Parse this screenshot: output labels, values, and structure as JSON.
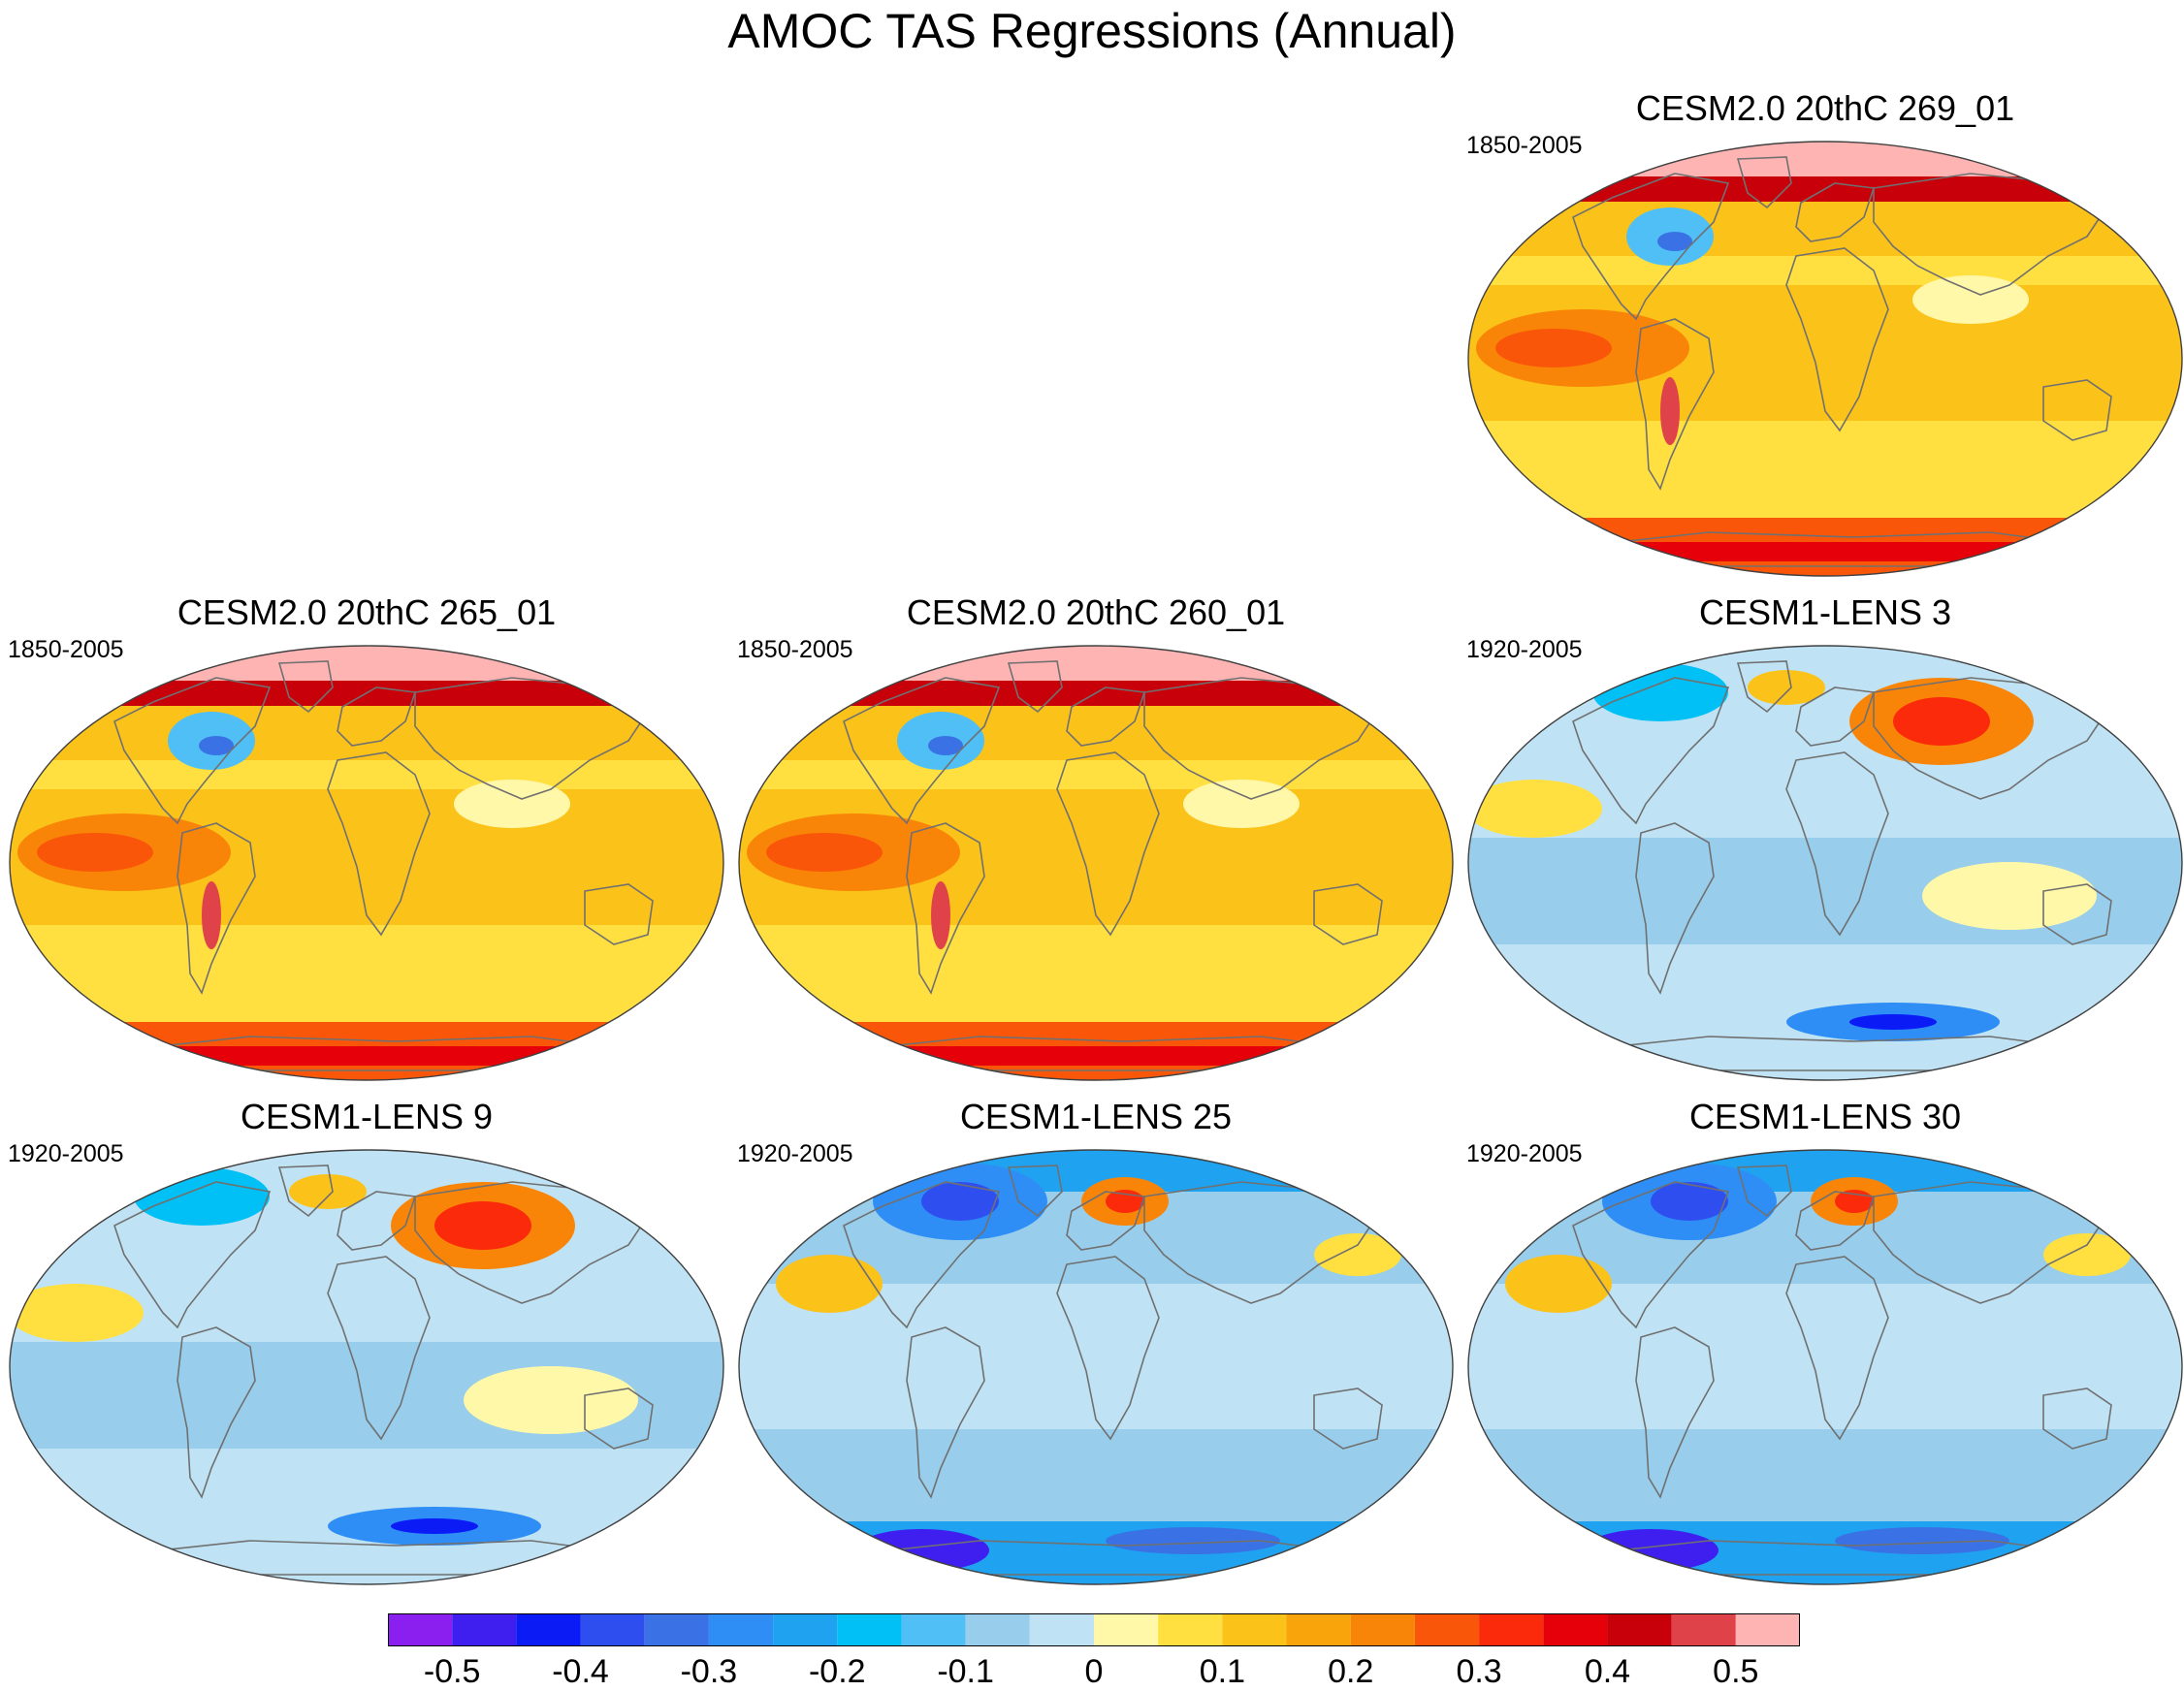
{
  "title": "AMOC TAS Regressions (Annual)",
  "panels": [
    {
      "id": "p269",
      "title": "CESM2.0 20thC 269_01",
      "period": "1850-2005",
      "pattern": "warm"
    },
    {
      "id": "p265",
      "title": "CESM2.0 20thC 265_01",
      "period": "1850-2005",
      "pattern": "warm"
    },
    {
      "id": "p260",
      "title": "CESM2.0 20thC 260_01",
      "period": "1850-2005",
      "pattern": "warm"
    },
    {
      "id": "l3",
      "title": "CESM1-LENS 3",
      "period": "1920-2005",
      "pattern": "mixed"
    },
    {
      "id": "l9",
      "title": "CESM1-LENS 9",
      "period": "1920-2005",
      "pattern": "mixed"
    },
    {
      "id": "l25",
      "title": "CESM1-LENS 25",
      "period": "1920-2005",
      "pattern": "cool"
    },
    {
      "id": "l30",
      "title": "CESM1-LENS 30",
      "period": "1920-2005",
      "pattern": "cool"
    }
  ],
  "colorbar": {
    "labels": [
      "-0.5",
      "-0.4",
      "-0.3",
      "-0.2",
      "-0.1",
      "0",
      "0.1",
      "0.2",
      "0.3",
      "0.4",
      "0.5"
    ],
    "colors": [
      "#8a1ff0",
      "#3f1ff0",
      "#0a1bf5",
      "#2f4ef0",
      "#3a72e6",
      "#2f8ef5",
      "#1fa3f0",
      "#00c0f5",
      "#4fbff5",
      "#98cdeb",
      "#bfe3f5",
      "#fff8a8",
      "#ffe040",
      "#fbc21a",
      "#f8a40a",
      "#f98508",
      "#fa560a",
      "#fa2a0a",
      "#e6000a",
      "#c8000a",
      "#e0424a",
      "#ffb4b4"
    ]
  },
  "colors": {
    "coast": "#707070",
    "outline": "#404040"
  }
}
